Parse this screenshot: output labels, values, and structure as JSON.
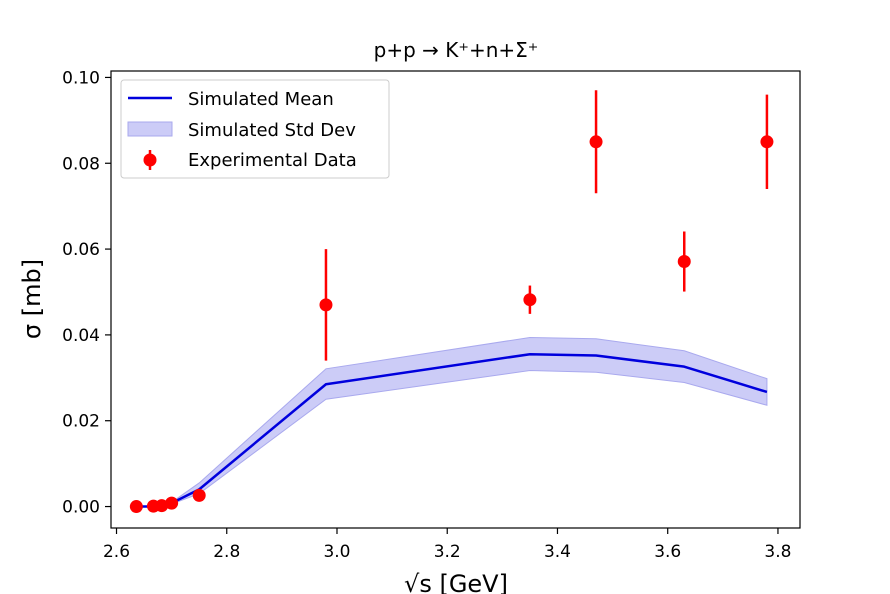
{
  "chart_data": {
    "type": "line",
    "title": "p+p → K⁺+n+Σ⁺",
    "xlabel": "√s [GeV]",
    "ylabel": "σ [mb]",
    "xlim": [
      2.59,
      3.84
    ],
    "ylim": [
      -0.005,
      0.1015
    ],
    "xticks": [
      2.6,
      2.8,
      3.0,
      3.2,
      3.4,
      3.6,
      3.8
    ],
    "xtick_labels": [
      "2.6",
      "2.8",
      "3.0",
      "3.2",
      "3.4",
      "3.6",
      "3.8"
    ],
    "yticks": [
      0.0,
      0.02,
      0.04,
      0.06,
      0.08,
      0.1
    ],
    "ytick_labels": [
      "0.00",
      "0.02",
      "0.04",
      "0.06",
      "0.08",
      "0.10"
    ],
    "grid": false,
    "legend_position": "top-left",
    "legend": [
      "Simulated Mean",
      "Simulated Std Dev",
      "Experimental Data"
    ],
    "colors": {
      "mean": "#0000dd",
      "band_fill": "#ccccf7",
      "band_edge": "#a9a9ee",
      "data": "#ff0000"
    },
    "series": [
      {
        "name": "Simulated Mean",
        "kind": "line",
        "x": [
          2.636,
          2.667,
          2.682,
          2.7,
          2.75,
          2.98,
          3.35,
          3.47,
          3.63,
          3.78
        ],
        "y": [
          0.0,
          0.0,
          0.0003,
          0.0008,
          0.004,
          0.0285,
          0.0355,
          0.0352,
          0.0326,
          0.0267
        ],
        "low": [
          0.0,
          0.0,
          0.0002,
          0.0006,
          0.003,
          0.025,
          0.0317,
          0.0313,
          0.0289,
          0.0236
        ],
        "high": [
          0.0,
          0.0,
          0.0004,
          0.001,
          0.0055,
          0.0321,
          0.0394,
          0.0391,
          0.0363,
          0.0298
        ]
      },
      {
        "name": "Experimental Data",
        "kind": "errorbar",
        "x": [
          2.636,
          2.667,
          2.682,
          2.7,
          2.75,
          2.98,
          3.35,
          3.47,
          3.63,
          3.78
        ],
        "y": [
          0.0,
          0.0001,
          0.0002,
          0.0008,
          0.0026,
          0.047,
          0.0482,
          0.085,
          0.0571,
          0.085
        ],
        "err": [
          0.0,
          0.0,
          0.0,
          0.0,
          0.0,
          0.013,
          0.0033,
          0.012,
          0.007,
          0.011
        ]
      }
    ]
  }
}
